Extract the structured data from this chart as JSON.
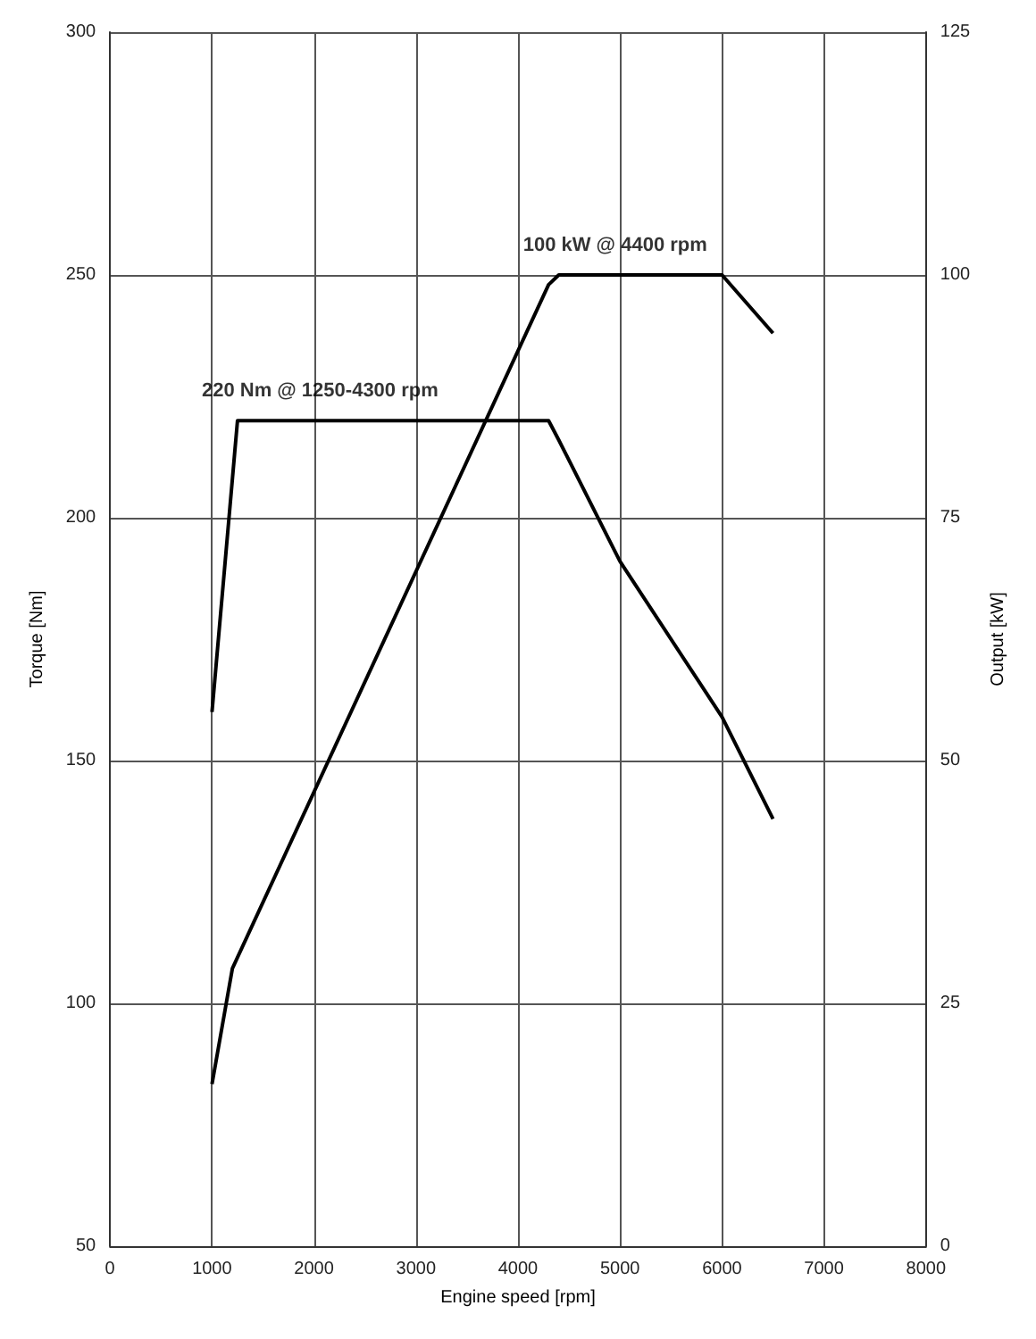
{
  "chart_data": {
    "type": "line",
    "xlabel": "Engine speed [rpm]",
    "ylabel": "Torque [Nm]",
    "y2label": "Output [kW]",
    "xlim": [
      0,
      8000
    ],
    "xticks": [
      0,
      1000,
      2000,
      3000,
      4000,
      5000,
      6000,
      7000,
      8000
    ],
    "ylim": [
      50,
      300
    ],
    "yticks": [
      50,
      100,
      150,
      200,
      250,
      300
    ],
    "y2lim": [
      0,
      125
    ],
    "y2ticks": [
      0,
      25,
      50,
      75,
      100,
      125
    ],
    "grid": true,
    "marker": "none",
    "line_style": "solid",
    "series": [
      {
        "color": "#000000",
        "x": [
          1000,
          1250,
          4300,
          4400,
          5000,
          6000,
          6500
        ],
        "values": [
          160,
          220,
          220,
          216,
          191,
          159,
          138
        ]
      },
      {
        "color": "#000000",
        "axis": "y2",
        "x": [
          1000,
          1200,
          4300,
          4400,
          6000,
          6500
        ],
        "values": [
          16.7,
          28.6,
          99,
          100,
          100,
          94
        ]
      }
    ],
    "annotations": [
      {
        "text": "220 Nm @ 1250-4300 rpm",
        "x": 1250,
        "y": 220
      },
      {
        "text": "100 kW @ 4400 rpm",
        "x": 4400,
        "y": 250
      }
    ]
  }
}
